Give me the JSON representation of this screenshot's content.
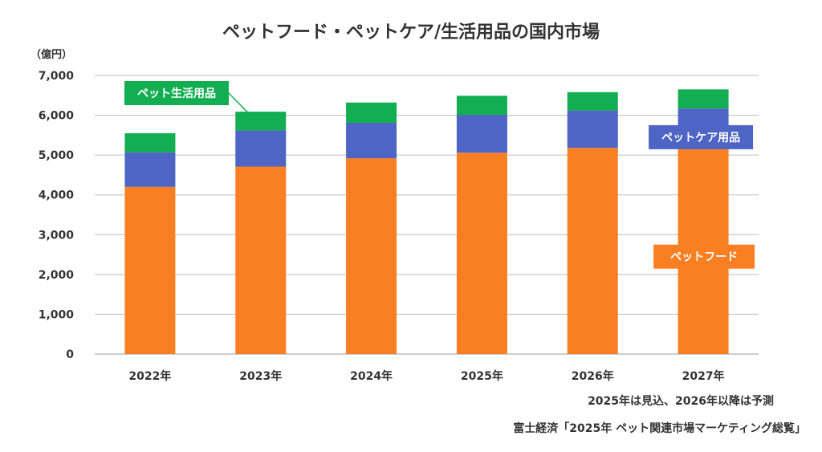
{
  "chart_data": {
    "type": "bar",
    "stacked": true,
    "title": "ペットフード・ペットケア/生活用品の国内市場",
    "unit_label": "（億円）",
    "categories": [
      "2022年",
      "2023年",
      "2024年",
      "2025年",
      "2026年",
      "2027年"
    ],
    "series": [
      {
        "name": "ペットフード",
        "color": "#FA7F22",
        "values": [
          4200,
          4710,
          4920,
          5060,
          5180,
          5240
        ]
      },
      {
        "name": "ペットケア用品",
        "color": "#4E65C6",
        "values": [
          870,
          910,
          890,
          950,
          940,
          930
        ]
      },
      {
        "name": "ペット生活用品",
        "color": "#12AE51",
        "values": [
          480,
          470,
          510,
          480,
          460,
          480
        ]
      }
    ],
    "y_ticks": [
      "0",
      "1,000",
      "2,000",
      "3,000",
      "4,000",
      "5,000",
      "6,000",
      "7,000"
    ],
    "ylim": [
      0,
      7000
    ],
    "grid": true,
    "notes": [
      "2025年は見込、2026年以降は予測",
      "富士経済「2025年 ペット関連市場マーケティング総覧」"
    ]
  }
}
